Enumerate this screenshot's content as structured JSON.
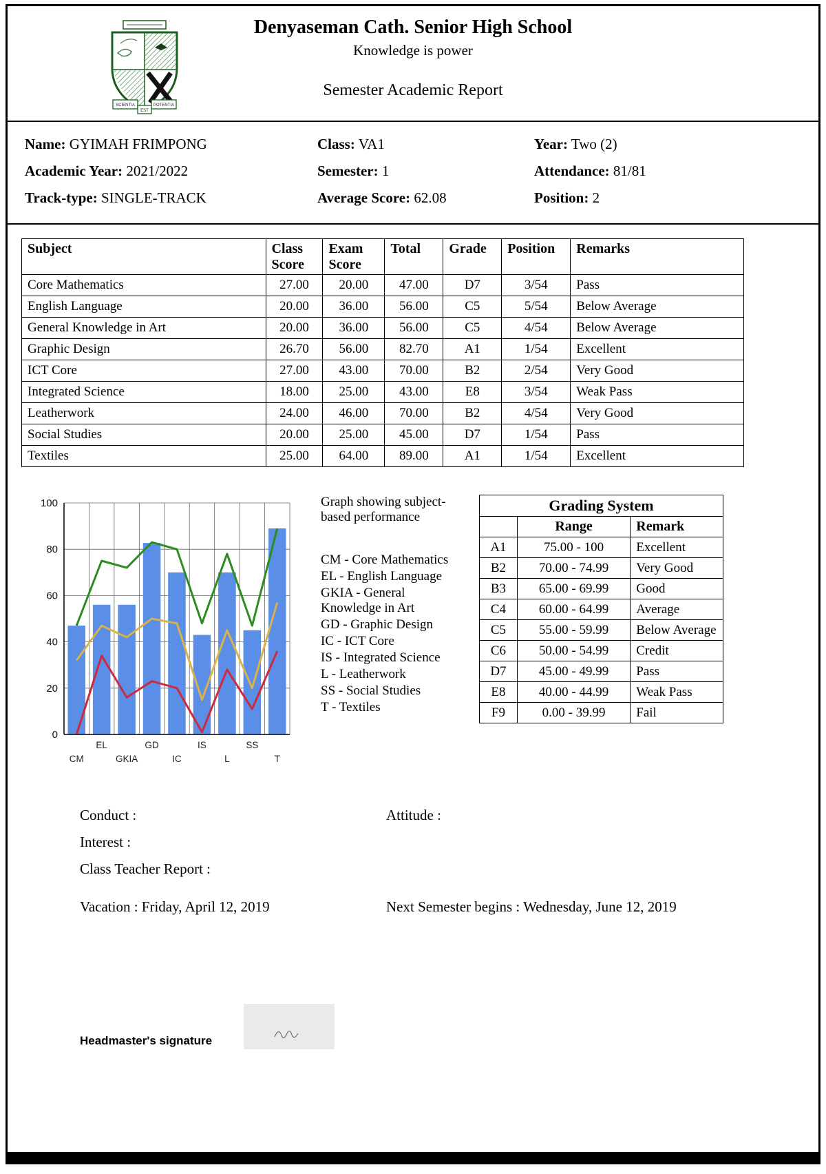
{
  "header": {
    "school_name": "Denyaseman Cath. Senior High School",
    "motto": "Knowledge is power",
    "report_title": "Semester Academic Report"
  },
  "crest": {
    "ribbon_left": "SCIENTIA",
    "ribbon_center": "EST",
    "ribbon_right": "POTENTIA"
  },
  "student_info": {
    "items": [
      {
        "label": "Name:",
        "value": "GYIMAH FRIMPONG"
      },
      {
        "label": "Class:",
        "value": "VA1"
      },
      {
        "label": "Year:",
        "value": "Two (2)"
      },
      {
        "label": "Academic Year:",
        "value": "2021/2022"
      },
      {
        "label": "Semester:",
        "value": "1"
      },
      {
        "label": "Attendance:",
        "value": "81/81"
      },
      {
        "label": "Track-type:",
        "value": "SINGLE-TRACK"
      },
      {
        "label": "Average Score:",
        "value": "62.08"
      },
      {
        "label": "Position:",
        "value": "2"
      }
    ]
  },
  "results_table": {
    "headers": [
      "Subject",
      "Class Score",
      "Exam Score",
      "Total",
      "Grade",
      "Position",
      "Remarks"
    ],
    "rows": [
      [
        "Core Mathematics",
        "27.00",
        "20.00",
        "47.00",
        "D7",
        "3/54",
        "Pass"
      ],
      [
        "English Language",
        "20.00",
        "36.00",
        "56.00",
        "C5",
        "5/54",
        "Below Average"
      ],
      [
        "General Knowledge in Art",
        "20.00",
        "36.00",
        "56.00",
        "C5",
        "4/54",
        "Below Average"
      ],
      [
        "Graphic Design",
        "26.70",
        "56.00",
        "82.70",
        "A1",
        "1/54",
        "Excellent"
      ],
      [
        "ICT Core",
        "27.00",
        "43.00",
        "70.00",
        "B2",
        "2/54",
        "Very Good"
      ],
      [
        "Integrated Science",
        "18.00",
        "25.00",
        "43.00",
        "E8",
        "3/54",
        "Weak Pass"
      ],
      [
        "Leatherwork",
        "24.00",
        "46.00",
        "70.00",
        "B2",
        "4/54",
        "Very Good"
      ],
      [
        "Social Studies",
        "20.00",
        "25.00",
        "45.00",
        "D7",
        "1/54",
        "Pass"
      ],
      [
        "Textiles",
        "25.00",
        "64.00",
        "89.00",
        "A1",
        "1/54",
        "Excellent"
      ]
    ]
  },
  "chart": {
    "caption": "Graph showing subject-based performance",
    "abbreviations": [
      "CM - Core Mathematics",
      "EL - English Language",
      "GKIA - General Knowledge in Art",
      "GD - Graphic Design",
      "IC - ICT Core",
      "IS - Integrated Science",
      "L - Leatherwork",
      "SS - Social Studies",
      "T - Textiles"
    ]
  },
  "chart_data": {
    "type": "bar",
    "title": "Graph showing subject-based performance",
    "categories": [
      "CM",
      "EL",
      "GKIA",
      "GD",
      "IC",
      "IS",
      "L",
      "SS",
      "T"
    ],
    "series": [
      {
        "name": "total-score-bars",
        "type": "bar",
        "color": "#5b8ee6",
        "values": [
          47,
          56,
          56,
          82.7,
          70,
          43,
          70,
          45,
          89
        ]
      },
      {
        "name": "green-line",
        "type": "line",
        "color": "#2e8b22",
        "values": [
          47,
          75,
          72,
          83,
          80,
          48,
          78,
          47,
          89
        ]
      },
      {
        "name": "yellow-line",
        "type": "line",
        "color": "#d9b24a",
        "values": [
          32,
          47,
          42,
          50,
          48,
          15,
          45,
          20,
          57
        ]
      },
      {
        "name": "red-line",
        "type": "line",
        "color": "#cc2a3d",
        "values": [
          0,
          34,
          16,
          23,
          20,
          1,
          28,
          11,
          36
        ]
      }
    ],
    "xlabel": "",
    "ylabel": "",
    "ylim": [
      0,
      100
    ],
    "yticks": [
      0,
      20,
      40,
      60,
      80,
      100
    ],
    "grid": true,
    "legend": false
  },
  "grading": {
    "title": "Grading System",
    "headers": [
      "",
      "Range",
      "Remark"
    ],
    "rows": [
      [
        "A1",
        "75.00 - 100",
        "Excellent"
      ],
      [
        "B2",
        "70.00 - 74.99",
        "Very Good"
      ],
      [
        "B3",
        "65.00 - 69.99",
        "Good"
      ],
      [
        "C4",
        "60.00 - 64.99",
        "Average"
      ],
      [
        "C5",
        "55.00 - 59.99",
        "Below Average"
      ],
      [
        "C6",
        "50.00 - 54.99",
        "Credit"
      ],
      [
        "D7",
        "45.00 - 49.99",
        "Pass"
      ],
      [
        "E8",
        "40.00 - 44.99",
        "Weak Pass"
      ],
      [
        "F9",
        "0.00 - 39.99",
        "Fail"
      ]
    ]
  },
  "footer": {
    "conduct_label": "Conduct :",
    "attitude_label": "Attitude :",
    "interest_label": "Interest :",
    "teacher_report_label": "Class Teacher Report :",
    "vacation": "Vacation : Friday, April 12, 2019",
    "next_semester": "Next Semester begins : Wednesday, June 12, 2019",
    "signature_label": "Headmaster's signature"
  }
}
